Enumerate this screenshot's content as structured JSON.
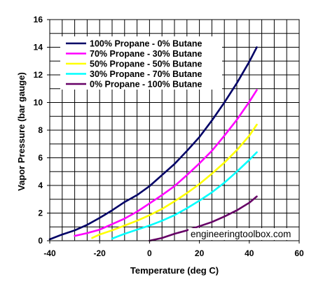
{
  "chart_data": {
    "type": "line",
    "xlabel": "Temperature (deg C)",
    "ylabel": "Vapor Pressure (bar gauge)",
    "xlim": [
      -40,
      60
    ],
    "ylim": [
      0,
      16
    ],
    "x_ticks": [
      "-40",
      "-20",
      "0",
      "20",
      "40",
      "60"
    ],
    "y_ticks": [
      "0",
      "2",
      "4",
      "6",
      "8",
      "10",
      "12",
      "14",
      "16"
    ],
    "grid": true,
    "legend_position": "top-left",
    "watermark": "engineeringtoolbox.com",
    "series": [
      {
        "name": "100% Propane - 0% Butane",
        "color": "#000066",
        "x": [
          -40,
          -35,
          -30,
          -25,
          -20,
          -15,
          -10,
          -5,
          0,
          5,
          10,
          15,
          20,
          25,
          30,
          35,
          40,
          43
        ],
        "y": [
          0.1,
          0.45,
          0.75,
          1.15,
          1.65,
          2.2,
          2.8,
          3.3,
          3.95,
          4.75,
          5.55,
          6.5,
          7.5,
          8.7,
          10.0,
          11.4,
          12.95,
          14.0
        ]
      },
      {
        "name": "70% Propane - 30% Butane",
        "color": "#FF00FF",
        "x": [
          -30,
          -25,
          -20,
          -15,
          -10,
          -5,
          0,
          5,
          10,
          15,
          20,
          25,
          30,
          35,
          40,
          43
        ],
        "y": [
          0.35,
          0.55,
          0.8,
          1.2,
          1.6,
          2.1,
          2.7,
          3.3,
          3.95,
          4.75,
          5.6,
          6.5,
          7.6,
          8.75,
          10.05,
          10.9
        ]
      },
      {
        "name": "50% Propane - 50% Butane",
        "color": "#FFFF00",
        "x": [
          -23,
          -20,
          -15,
          -10,
          -5,
          0,
          5,
          10,
          15,
          20,
          25,
          30,
          35,
          40,
          43
        ],
        "y": [
          0.2,
          0.45,
          0.75,
          1.1,
          1.45,
          1.85,
          2.3,
          2.85,
          3.45,
          4.1,
          4.85,
          5.65,
          6.55,
          7.6,
          8.4
        ]
      },
      {
        "name": "30% Propane - 70% Butane",
        "color": "#00FFFF",
        "x": [
          -15,
          -10,
          -5,
          0,
          5,
          10,
          15,
          20,
          25,
          30,
          35,
          40,
          43
        ],
        "y": [
          0.15,
          0.5,
          0.8,
          1.1,
          1.45,
          1.85,
          2.35,
          2.9,
          3.5,
          4.2,
          5.0,
          5.85,
          6.4
        ]
      },
      {
        "name": "0% Propane - 100% Butane",
        "color": "#660066",
        "x": [
          0,
          5,
          10,
          15,
          20,
          25,
          30,
          35,
          40,
          43
        ],
        "y": [
          0.0,
          0.2,
          0.5,
          0.75,
          1.05,
          1.35,
          1.75,
          2.2,
          2.75,
          3.2
        ]
      }
    ]
  }
}
